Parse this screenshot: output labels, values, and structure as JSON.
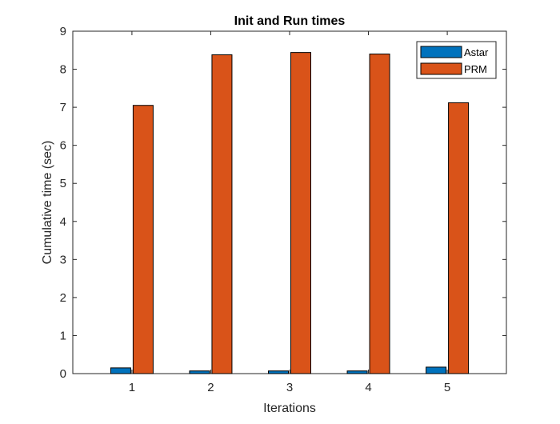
{
  "chart_data": {
    "type": "bar",
    "title": "Init and Run times",
    "xlabel": "Iterations",
    "ylabel": "Cumulative time (sec)",
    "categories": [
      "1",
      "2",
      "3",
      "4",
      "5"
    ],
    "series": [
      {
        "name": "Astar",
        "values": [
          0.15,
          0.07,
          0.07,
          0.07,
          0.17
        ],
        "color": "#0072BD"
      },
      {
        "name": "PRM",
        "values": [
          7.05,
          8.38,
          8.44,
          8.4,
          7.12
        ],
        "color": "#D95319"
      }
    ],
    "ylim": [
      0,
      9
    ],
    "yticks": [
      0,
      1,
      2,
      3,
      4,
      5,
      6,
      7,
      8,
      9
    ],
    "ytick_labels": [
      "0",
      "1",
      "2",
      "3",
      "4",
      "5",
      "6",
      "7",
      "8",
      "9"
    ],
    "grid": false,
    "legend_position": "top-right"
  }
}
